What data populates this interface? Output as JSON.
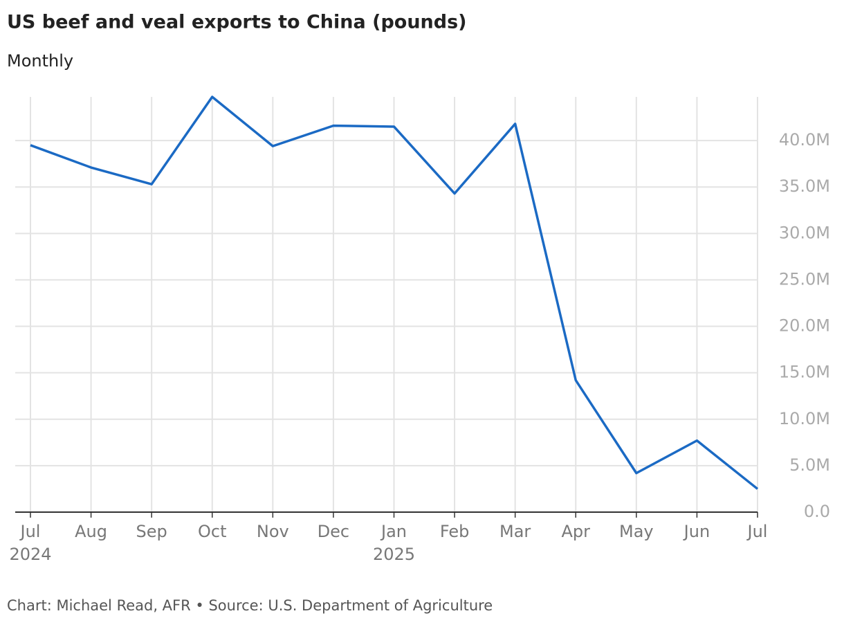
{
  "chart_data": {
    "type": "line",
    "title": "US beef and veal exports to China (pounds)",
    "subtitle": "Monthly",
    "source": "Chart: Michael Read, AFR • Source: U.S. Department of Agriculture",
    "categories": [
      "Jul",
      "Aug",
      "Sep",
      "Oct",
      "Nov",
      "Dec",
      "Jan",
      "Feb",
      "Mar",
      "Apr",
      "May",
      "Jun",
      "Jul"
    ],
    "x_sublabels": [
      "2024",
      null,
      null,
      null,
      null,
      null,
      "2025",
      null,
      null,
      null,
      null,
      null,
      null
    ],
    "series": [
      {
        "name": "US beef and veal exports to China",
        "color": "#1b6ac4",
        "values": [
          39500000,
          37100000,
          35300000,
          44700000,
          39400000,
          41600000,
          41500000,
          34300000,
          41800000,
          14200000,
          4200000,
          7700000,
          2500000
        ]
      }
    ],
    "ylim": [
      0,
      44700000
    ],
    "yticks": [
      {
        "value": 0,
        "label": "0.0"
      },
      {
        "value": 5000000,
        "label": "5.0M"
      },
      {
        "value": 10000000,
        "label": "10.0M"
      },
      {
        "value": 15000000,
        "label": "15.0M"
      },
      {
        "value": 20000000,
        "label": "20.0M"
      },
      {
        "value": 25000000,
        "label": "25.0M"
      },
      {
        "value": 30000000,
        "label": "30.0M"
      },
      {
        "value": 35000000,
        "label": "35.0M"
      },
      {
        "value": 40000000,
        "label": "40.0M"
      }
    ],
    "grid": true
  }
}
